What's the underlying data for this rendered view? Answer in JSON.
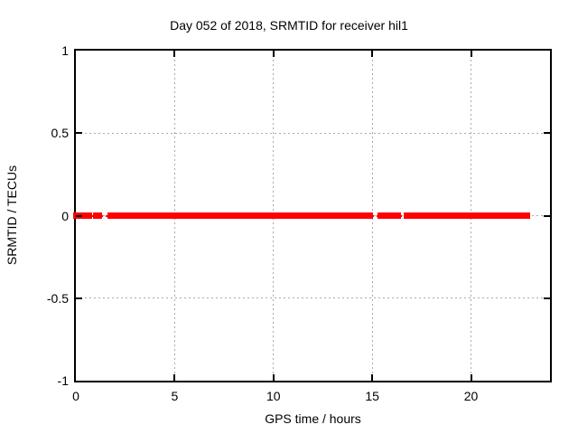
{
  "title": "Day 052 of 2018, SRMTID for receiver hil1",
  "chart_data": {
    "type": "scatter",
    "title": "Day 052 of 2018, SRMTID for receiver hil1",
    "xlabel": "GPS time / hours",
    "ylabel": "SRMTID / TECUs",
    "xlim": [
      0,
      24
    ],
    "ylim": [
      -1,
      1
    ],
    "x_ticks": [
      0,
      5,
      10,
      15,
      20
    ],
    "x_tick_labels": [
      "0",
      "5",
      "10",
      "15",
      "20"
    ],
    "y_ticks": [
      1,
      0.5,
      0,
      -0.5,
      -1
    ],
    "y_tick_labels": [
      "1",
      "0.5",
      "0",
      "-0.5",
      "-1"
    ],
    "grid": true,
    "legend": "none",
    "series": [
      {
        "name": "SRMTID",
        "marker": "filled-square",
        "color": "#ff0000",
        "y_value": 0,
        "dense_intervals_hours": [
          [
            0.0,
            0.1
          ],
          [
            0.3,
            0.7
          ],
          [
            1.0,
            1.2
          ],
          [
            1.75,
            14.9
          ],
          [
            15.4,
            16.3
          ],
          [
            16.75,
            22.85
          ]
        ],
        "sparse_intervals_hours": [
          [
            0.1,
            0.3
          ],
          [
            0.7,
            1.0
          ],
          [
            1.2,
            1.75
          ],
          [
            14.9,
            15.4
          ],
          [
            16.3,
            16.75
          ]
        ]
      }
    ],
    "colors": {
      "data": "#ff0000",
      "grid": "#aaaaaa",
      "axis": "#000000",
      "background": "#ffffff"
    }
  }
}
